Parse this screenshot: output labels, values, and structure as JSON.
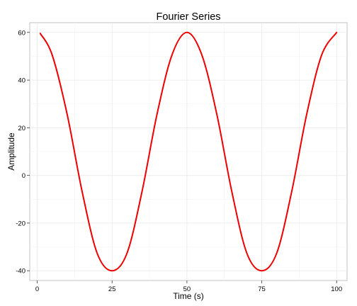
{
  "chart_data": {
    "type": "line",
    "title": "Fourier Series",
    "xlabel": "Time (s)",
    "ylabel": "Amplitude",
    "xlim": [
      -2.5,
      103.5
    ],
    "ylim": [
      -44.1,
      64.1
    ],
    "x_ticks": [
      0,
      25,
      50,
      75,
      100
    ],
    "y_ticks": [
      -40,
      -20,
      0,
      20,
      40,
      60
    ],
    "x_tick_labels": [
      "0",
      "25",
      "50",
      "75",
      "100"
    ],
    "y_tick_labels": [
      "-40",
      "-20",
      "0",
      "20",
      "40",
      "60"
    ],
    "grid": true,
    "legend": "none",
    "series": [
      {
        "color": "#ee0000",
        "x": [
          1,
          5,
          10,
          15,
          20,
          25,
          30,
          35,
          40,
          45,
          50,
          55,
          60,
          65,
          70,
          75,
          80,
          85,
          90,
          95,
          100
        ],
        "y": [
          59.6,
          50.5,
          25.6,
          -6.8,
          -32.6,
          -40,
          -32.6,
          -6.8,
          25.6,
          50.5,
          60,
          50.5,
          25.6,
          -6.8,
          -32.6,
          -40,
          -32.6,
          -6.8,
          25.6,
          50.5,
          60
        ]
      }
    ]
  }
}
